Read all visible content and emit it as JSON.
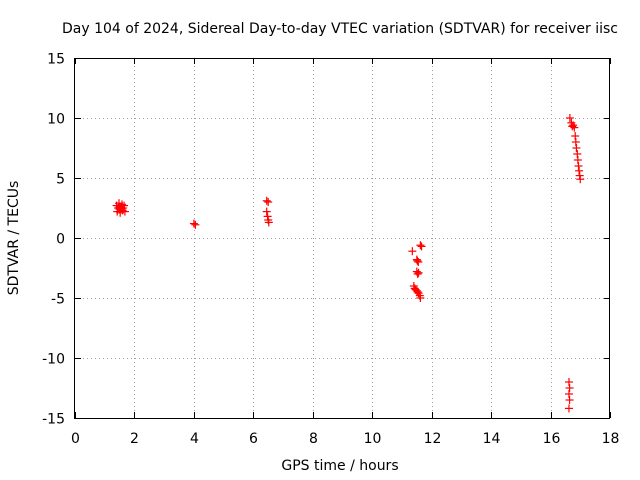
{
  "chart_data": {
    "type": "scatter",
    "title": "Day 104 of 2024, Sidereal Day-to-day VTEC variation (SDTVAR) for receiver iisc",
    "xlabel": "GPS time / hours",
    "ylabel": "SDTVAR / TECUs",
    "xlim": [
      0,
      18
    ],
    "ylim": [
      -15,
      15
    ],
    "xticks": [
      0,
      2,
      4,
      6,
      8,
      10,
      12,
      14,
      16,
      18
    ],
    "yticks": [
      -15,
      -10,
      -5,
      0,
      5,
      10,
      15
    ],
    "grid": true,
    "marker": "+",
    "color": "#ff0000",
    "series": [
      {
        "name": "SDTVAR",
        "points": [
          [
            1.4,
            2.7
          ],
          [
            1.42,
            2.2
          ],
          [
            1.45,
            2.5
          ],
          [
            1.48,
            2.9
          ],
          [
            1.5,
            2.4
          ],
          [
            1.52,
            2.1
          ],
          [
            1.55,
            2.6
          ],
          [
            1.58,
            2.8
          ],
          [
            1.6,
            2.3
          ],
          [
            1.62,
            2.5
          ],
          [
            1.65,
            2.7
          ],
          [
            1.68,
            2.2
          ],
          [
            1.5,
            2.6
          ],
          [
            4.0,
            1.2
          ],
          [
            4.05,
            1.1
          ],
          [
            6.45,
            3.1
          ],
          [
            6.5,
            3.0
          ],
          [
            6.45,
            2.2
          ],
          [
            6.48,
            1.8
          ],
          [
            6.5,
            1.5
          ],
          [
            6.52,
            1.3
          ],
          [
            11.35,
            -1.1
          ],
          [
            11.4,
            -4.0
          ],
          [
            11.43,
            -4.2
          ],
          [
            11.46,
            -4.3
          ],
          [
            11.5,
            -4.4
          ],
          [
            11.53,
            -4.5
          ],
          [
            11.56,
            -4.6
          ],
          [
            11.6,
            -4.8
          ],
          [
            11.62,
            -5.0
          ],
          [
            11.5,
            -1.8
          ],
          [
            11.52,
            -1.9
          ],
          [
            11.55,
            -2.0
          ],
          [
            11.5,
            -2.8
          ],
          [
            11.53,
            -3.0
          ],
          [
            11.56,
            -2.9
          ],
          [
            11.62,
            -0.6
          ],
          [
            11.66,
            -0.7
          ],
          [
            16.65,
            10.0
          ],
          [
            16.7,
            9.6
          ],
          [
            16.73,
            9.3
          ],
          [
            16.76,
            9.4
          ],
          [
            16.8,
            9.2
          ],
          [
            16.83,
            8.5
          ],
          [
            16.85,
            8.0
          ],
          [
            16.87,
            7.5
          ],
          [
            16.9,
            7.0
          ],
          [
            16.92,
            6.5
          ],
          [
            16.94,
            6.0
          ],
          [
            16.96,
            5.6
          ],
          [
            16.98,
            5.2
          ],
          [
            17.0,
            4.9
          ],
          [
            16.62,
            -12.0
          ],
          [
            16.64,
            -12.5
          ],
          [
            16.62,
            -13.0
          ],
          [
            16.64,
            -13.5
          ],
          [
            16.62,
            -14.2
          ]
        ]
      }
    ]
  }
}
